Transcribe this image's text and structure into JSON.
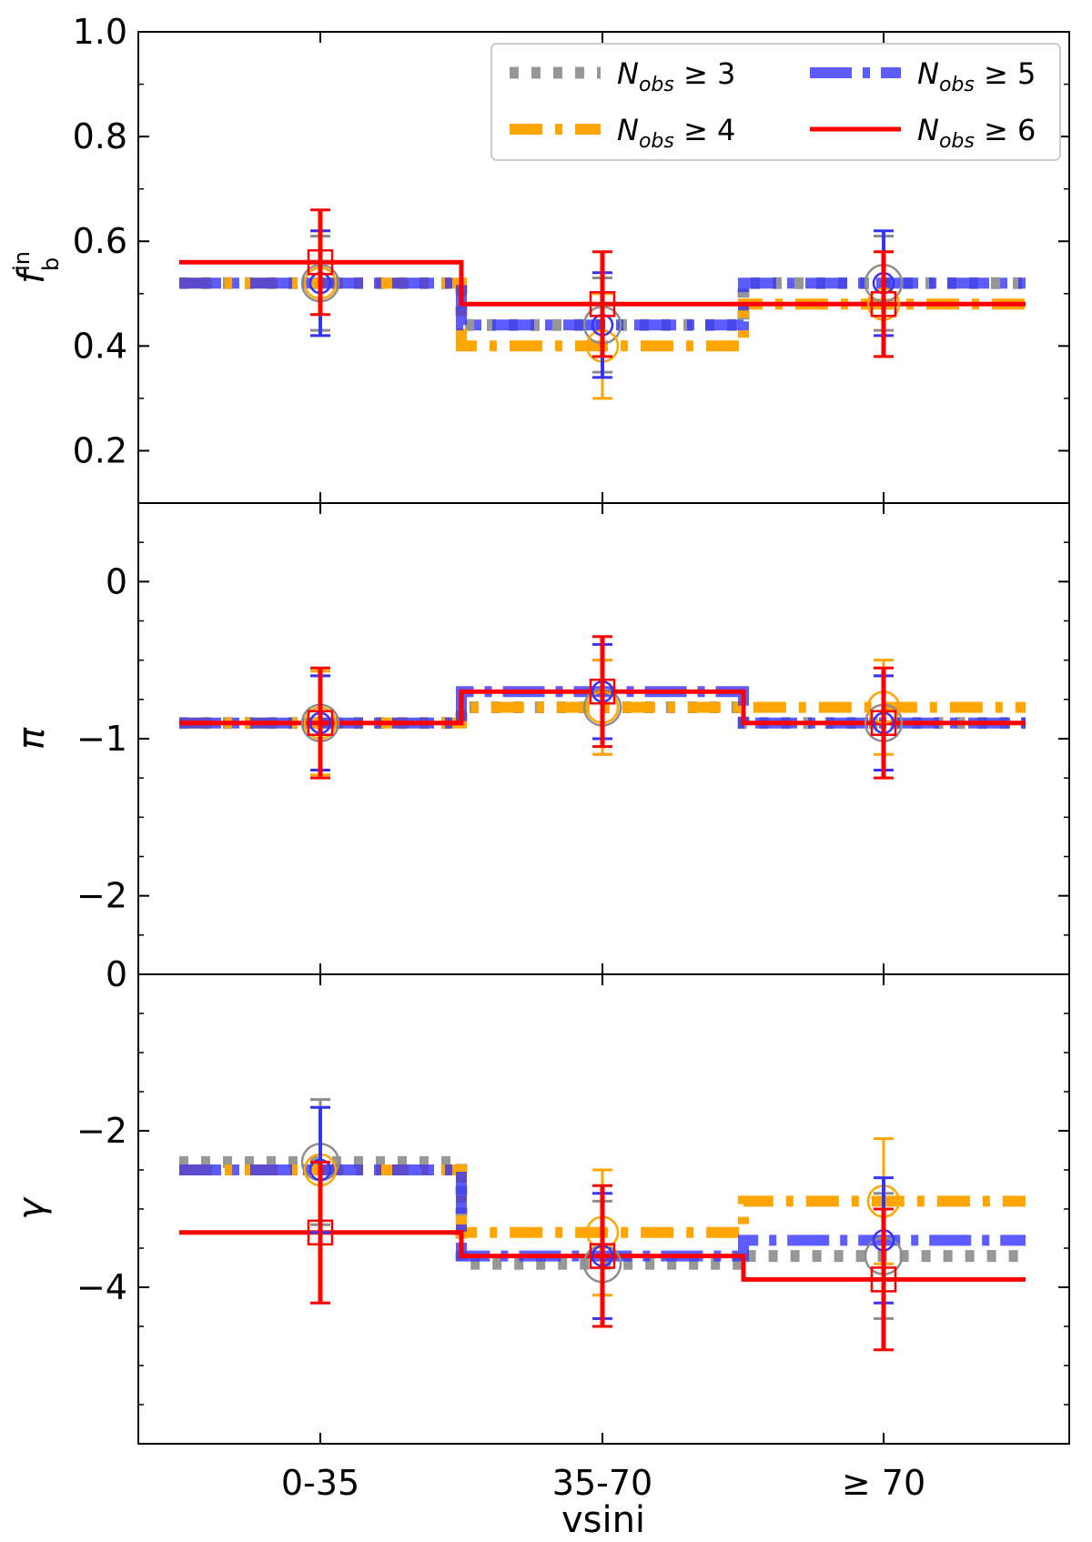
{
  "chart_data": {
    "type": "line",
    "xlabel": "vsini",
    "categories": [
      "0-35",
      "35-70",
      "≥ 70"
    ],
    "legend": {
      "position": "top-right",
      "entries": [
        {
          "base": "N",
          "sub": "obs",
          "rel": " ≥ 3",
          "color": "#8c8c8c",
          "style": "dotted"
        },
        {
          "base": "N",
          "sub": "obs",
          "rel": " ≥ 4",
          "color": "#ffa500",
          "style": "dashdot"
        },
        {
          "base": "N",
          "sub": "obs",
          "rel": " ≥ 5",
          "color": "#3333ff",
          "style": "dashdot"
        },
        {
          "base": "N",
          "sub": "obs",
          "rel": " ≥ 6",
          "color": "#ff0000",
          "style": "solid"
        }
      ]
    },
    "panels": [
      {
        "ylabel_base": "f",
        "ylabel_sup": "in",
        "ylabel_sub": "b",
        "ylim": [
          0.1,
          1.0
        ],
        "yticks": [
          0.2,
          0.4,
          0.6,
          0.8,
          1.0
        ],
        "ytick_labels": [
          "0.2",
          "0.4",
          "0.6",
          "0.8",
          "1.0"
        ],
        "series": [
          {
            "values": [
              0.52,
              0.44,
              0.52
            ],
            "err": [
              0.09,
              0.09,
              0.09
            ]
          },
          {
            "values": [
              0.52,
              0.4,
              0.48
            ],
            "err": [
              0.1,
              0.1,
              0.1
            ]
          },
          {
            "values": [
              0.52,
              0.44,
              0.52
            ],
            "err": [
              0.1,
              0.1,
              0.1
            ]
          },
          {
            "values": [
              0.56,
              0.48,
              0.48
            ],
            "err": [
              0.1,
              0.1,
              0.1
            ]
          }
        ]
      },
      {
        "ylabel_base": "π",
        "ylim": [
          -2.5,
          0.5
        ],
        "yticks": [
          -2,
          -1,
          0
        ],
        "ytick_labels": [
          "−2",
          "−1",
          "0"
        ],
        "series": [
          {
            "values": [
              -0.9,
              -0.8,
              -0.9
            ],
            "err": [
              0.3,
              0.3,
              0.3
            ]
          },
          {
            "values": [
              -0.9,
              -0.8,
              -0.8
            ],
            "err": [
              0.33,
              0.3,
              0.3
            ]
          },
          {
            "values": [
              -0.9,
              -0.7,
              -0.9
            ],
            "err": [
              0.3,
              0.3,
              0.3
            ]
          },
          {
            "values": [
              -0.9,
              -0.7,
              -0.9
            ],
            "err": [
              0.35,
              0.35,
              0.35
            ]
          }
        ]
      },
      {
        "ylabel_base": "γ",
        "ylim": [
          -6,
          0
        ],
        "yticks": [
          -4,
          -2,
          0
        ],
        "ytick_labels": [
          "−4",
          "−2",
          "0"
        ],
        "series": [
          {
            "values": [
              -2.4,
              -3.7,
              -3.6
            ],
            "err": [
              0.8,
              0.8,
              0.8
            ]
          },
          {
            "values": [
              -2.5,
              -3.3,
              -2.9
            ],
            "err": [
              0.8,
              0.8,
              0.8
            ]
          },
          {
            "values": [
              -2.5,
              -3.6,
              -3.4
            ],
            "err": [
              0.8,
              0.8,
              0.8
            ]
          },
          {
            "values": [
              -3.3,
              -3.6,
              -3.9
            ],
            "err": [
              0.9,
              0.9,
              0.9
            ]
          }
        ]
      }
    ]
  }
}
